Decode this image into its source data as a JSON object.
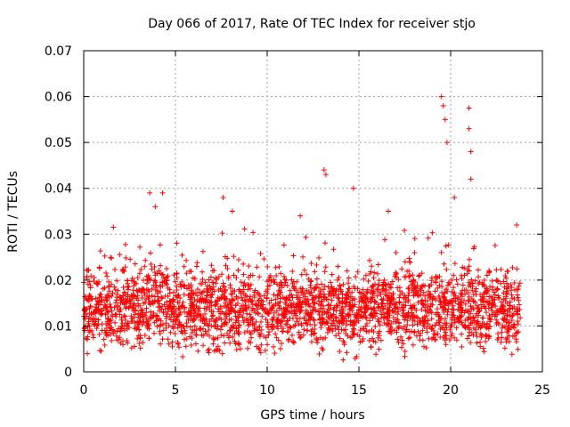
{
  "chart_data": {
    "type": "scatter",
    "title": "Day 066 of 2017, Rate Of TEC Index for receiver stjo",
    "xlabel": "GPS time / hours",
    "ylabel": "ROTI / TECUs",
    "xlim": [
      0,
      25
    ],
    "ylim": [
      0,
      0.07
    ],
    "x_ticks": [
      0,
      5,
      10,
      15,
      20,
      25
    ],
    "y_ticks": [
      0,
      0.01,
      0.02,
      0.03,
      0.04,
      0.05,
      0.06,
      0.07
    ],
    "x_tick_labels": [
      "0",
      "5",
      "10",
      "15",
      "20",
      "25"
    ],
    "y_tick_labels": [
      "0",
      "0.01",
      "0.02",
      "0.03",
      "0.04",
      "0.05",
      "0.06",
      "0.07"
    ],
    "grid": true,
    "marker": "+",
    "marker_color": "#ff0000",
    "series": [
      {
        "name": "ROTI",
        "color": "#ff0000",
        "x_range": [
          0.0,
          23.8
        ],
        "baseline": 0.0135,
        "spread": 0.007,
        "min_value": 0.002,
        "outliers": [
          {
            "x": 3.6,
            "y": 0.039
          },
          {
            "x": 3.9,
            "y": 0.036
          },
          {
            "x": 4.3,
            "y": 0.039
          },
          {
            "x": 7.6,
            "y": 0.038
          },
          {
            "x": 8.1,
            "y": 0.035
          },
          {
            "x": 11.8,
            "y": 0.034
          },
          {
            "x": 13.1,
            "y": 0.044
          },
          {
            "x": 13.2,
            "y": 0.043
          },
          {
            "x": 14.7,
            "y": 0.04
          },
          {
            "x": 16.6,
            "y": 0.035
          },
          {
            "x": 19.5,
            "y": 0.06
          },
          {
            "x": 19.6,
            "y": 0.058
          },
          {
            "x": 19.7,
            "y": 0.055
          },
          {
            "x": 19.8,
            "y": 0.05
          },
          {
            "x": 20.2,
            "y": 0.038
          },
          {
            "x": 21.0,
            "y": 0.0575
          },
          {
            "x": 21.0,
            "y": 0.053
          },
          {
            "x": 21.1,
            "y": 0.048
          },
          {
            "x": 21.1,
            "y": 0.042
          },
          {
            "x": 23.6,
            "y": 0.032
          }
        ]
      }
    ]
  }
}
